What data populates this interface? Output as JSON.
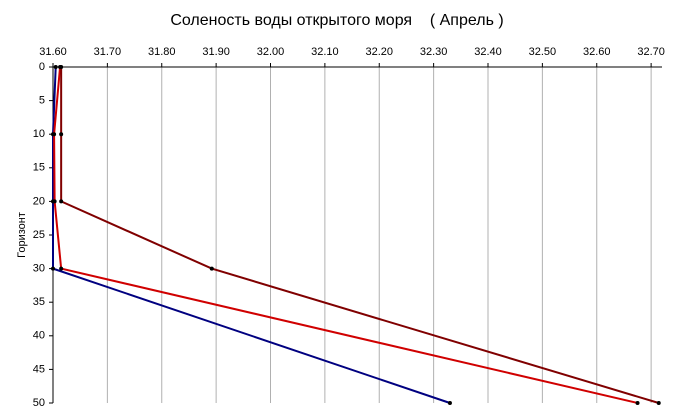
{
  "chart_data": {
    "type": "line",
    "title": "Соленость воды открытого моря    ( Апрель )",
    "y_label": "Горизонт",
    "y": [
      0,
      10,
      20,
      30,
      50
    ],
    "series": [
      {
        "color": "#000080",
        "values": [
          31.605,
          31.6,
          31.6,
          31.6,
          32.33
        ]
      },
      {
        "color": "#d00000",
        "values": [
          31.613,
          31.602,
          31.603,
          31.615,
          32.675
        ]
      },
      {
        "color": "#800000",
        "values": [
          31.615,
          31.615,
          31.615,
          31.892,
          32.714
        ]
      }
    ],
    "xlim": [
      31.6,
      32.72
    ],
    "xticks": [
      {
        "value": 31.6,
        "label": "31.60"
      },
      {
        "value": 31.7,
        "label": "31.70"
      },
      {
        "value": 31.8,
        "label": "31.80"
      },
      {
        "value": 31.9,
        "label": "31.90"
      },
      {
        "value": 32.0,
        "label": "32.00"
      },
      {
        "value": 32.1,
        "label": "32.10"
      },
      {
        "value": 32.2,
        "label": "32.20"
      },
      {
        "value": 32.3,
        "label": "32.30"
      },
      {
        "value": 32.4,
        "label": "32.40"
      },
      {
        "value": 32.5,
        "label": "32.50"
      },
      {
        "value": 32.6,
        "label": "32.60"
      },
      {
        "value": 32.7,
        "label": "32.70"
      }
    ],
    "ylim": [
      0,
      50
    ],
    "yticks": [
      0,
      5,
      10,
      15,
      20,
      25,
      30,
      35,
      40,
      45,
      50
    ],
    "grid": true
  }
}
